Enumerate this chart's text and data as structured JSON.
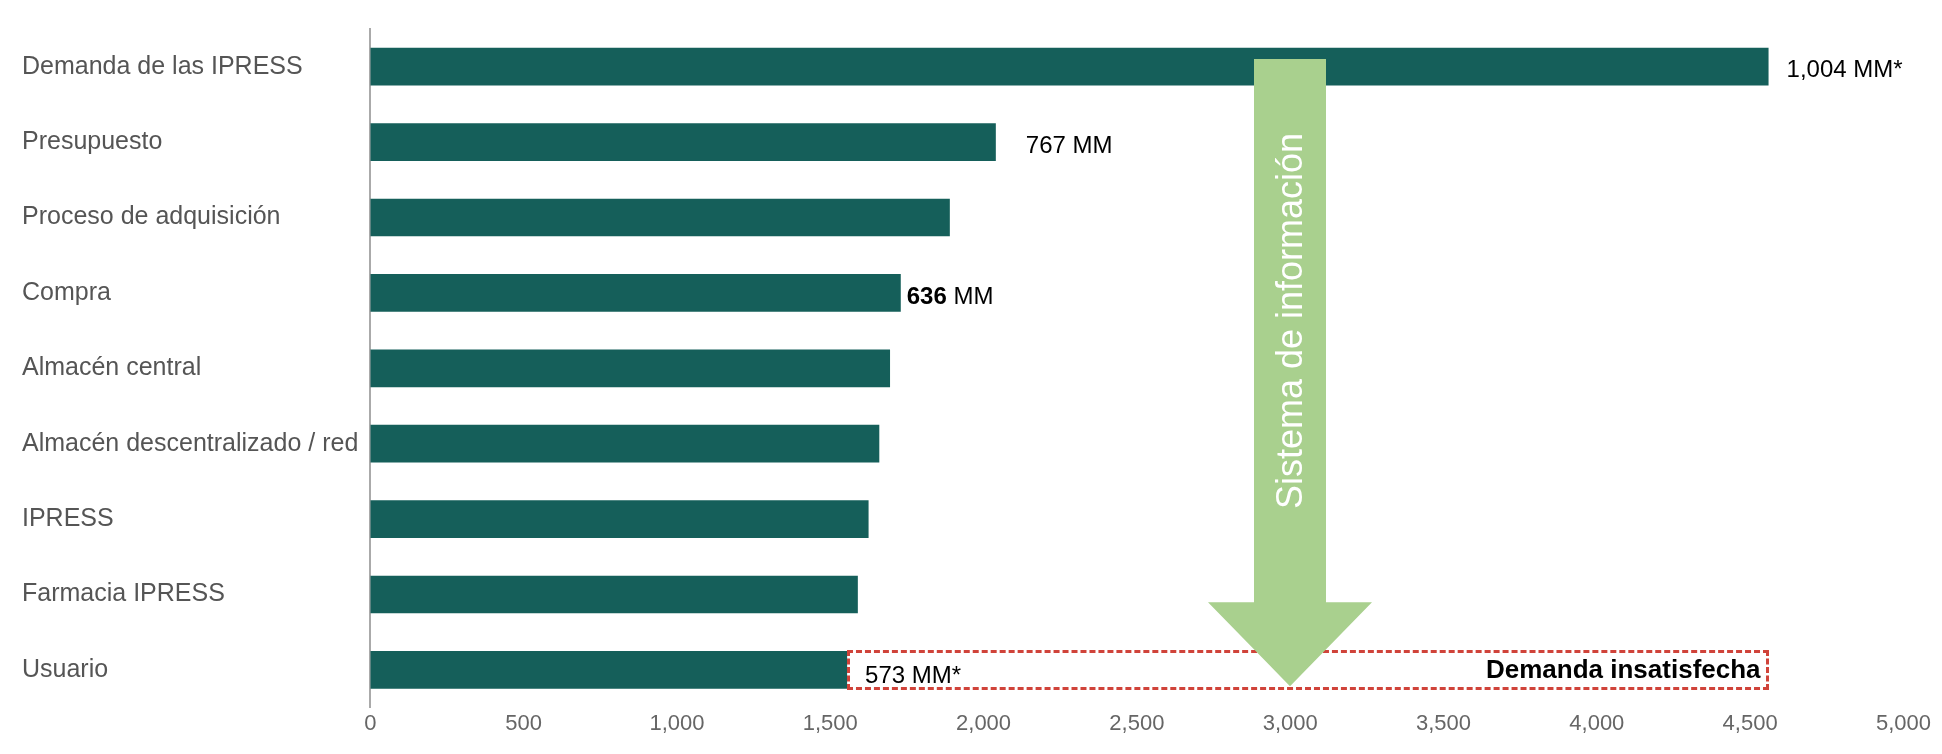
{
  "chart_data": {
    "type": "bar",
    "orientation": "horizontal",
    "categories": [
      "Demanda de las IPRESS",
      "Presupuesto",
      "Proceso de adquisición",
      "Compra",
      "Almacén central",
      "Almacén descentralizado / red",
      "IPRESS",
      "Farmacia IPRESS",
      "Usuario"
    ],
    "values": [
      4560,
      2040,
      1890,
      1730,
      1695,
      1660,
      1625,
      1590,
      1555
    ],
    "color": "#155f5a",
    "xlim": [
      0,
      5000
    ],
    "xticks": [
      {
        "value": 0,
        "label": "0"
      },
      {
        "value": 500,
        "label": "500"
      },
      {
        "value": 1000,
        "label": "1,000"
      },
      {
        "value": 1500,
        "label": "1,500"
      },
      {
        "value": 2000,
        "label": "2,000"
      },
      {
        "value": 2500,
        "label": "2,500"
      },
      {
        "value": 3000,
        "label": "3,000"
      },
      {
        "value": 3500,
        "label": "3,500"
      },
      {
        "value": 4000,
        "label": "4,000"
      },
      {
        "value": 4500,
        "label": "4,500"
      },
      {
        "value": 5000,
        "label": "5,000"
      }
    ],
    "grid": false,
    "legend": false,
    "annotations": [
      {
        "text": "1,004 MM*",
        "x": 4560,
        "y": "Demanda de las IPRESS"
      },
      {
        "text": "767 MM",
        "x": 2040,
        "y": "Presupuesto"
      },
      {
        "text": "636 MM",
        "x": 1730,
        "y": "Compra"
      },
      {
        "text": "573 MM*",
        "x": 1555,
        "y": "Usuario"
      },
      "Demanda insatisfecha",
      "Sistema de información"
    ]
  }
}
